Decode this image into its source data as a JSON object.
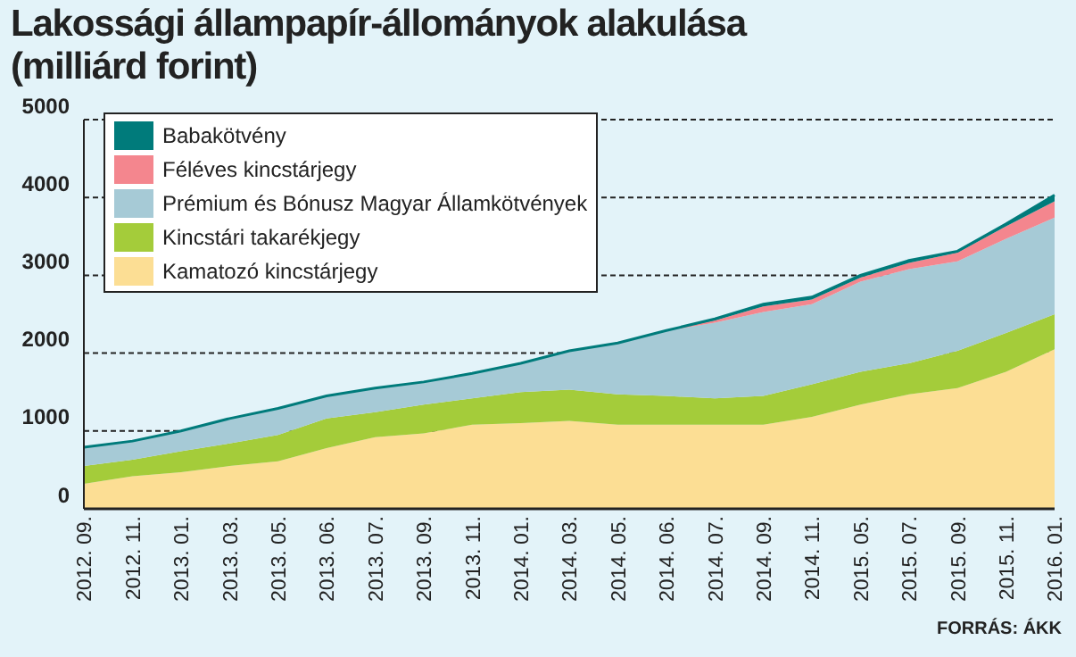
{
  "chart_data": {
    "type": "area",
    "stacked": true,
    "title": "Lakossági állampapír-állományok alakulása",
    "subtitle": "(milliárd forint)",
    "annotations": [
      "FORRÁS: ÁKK"
    ],
    "categories": [
      "2012. 09.",
      "2012. 11.",
      "2013. 01.",
      "2013. 03.",
      "2013. 05.",
      "2013. 06.",
      "2013. 07.",
      "2013. 09.",
      "2013. 11.",
      "2014. 01.",
      "2014. 03.",
      "2014. 05.",
      "2014. 06.",
      "2014. 07.",
      "2014. 09.",
      "2014. 11.",
      "2015. 05.",
      "2015. 07.",
      "2015. 09.",
      "2015. 11.",
      "2016. 01."
    ],
    "series": [
      {
        "name": "Kamatozó kincstárjegy",
        "color": "#fcde94",
        "values": [
          320,
          420,
          470,
          550,
          610,
          780,
          920,
          970,
          1080,
          1100,
          1130,
          1080,
          1080,
          1080,
          1080,
          1180,
          1340,
          1470,
          1550,
          1760,
          2050
        ]
      },
      {
        "name": "Kincstári takarékjegy",
        "color": "#a4cc3a",
        "values": [
          230,
          210,
          270,
          290,
          340,
          380,
          320,
          370,
          340,
          400,
          400,
          390,
          370,
          340,
          370,
          420,
          420,
          400,
          480,
          500,
          450
        ]
      },
      {
        "name": "Prémium és Bónusz Magyar Államkötvények",
        "color": "#a6cad6",
        "values": [
          240,
          240,
          260,
          320,
          340,
          290,
          310,
          290,
          320,
          370,
          500,
          660,
          840,
          970,
          1080,
          1030,
          1160,
          1210,
          1150,
          1210,
          1240
        ]
      },
      {
        "name": "Féléves kincstárjegy",
        "color": "#f4868e",
        "values": [
          0,
          0,
          0,
          0,
          0,
          0,
          0,
          0,
          0,
          0,
          0,
          0,
          0,
          30,
          70,
          60,
          50,
          80,
          110,
          160,
          210
        ]
      },
      {
        "name": "Babakötvény",
        "color": "#007b7b",
        "values": [
          0,
          0,
          0,
          0,
          0,
          0,
          0,
          0,
          0,
          0,
          0,
          0,
          0,
          20,
          30,
          30,
          30,
          30,
          20,
          30,
          80
        ]
      }
    ],
    "ylim": [
      0,
      5000
    ],
    "yticks": [
      0,
      1000,
      2000,
      3000,
      4000,
      5000
    ],
    "grid": "y",
    "legend": "top left"
  }
}
